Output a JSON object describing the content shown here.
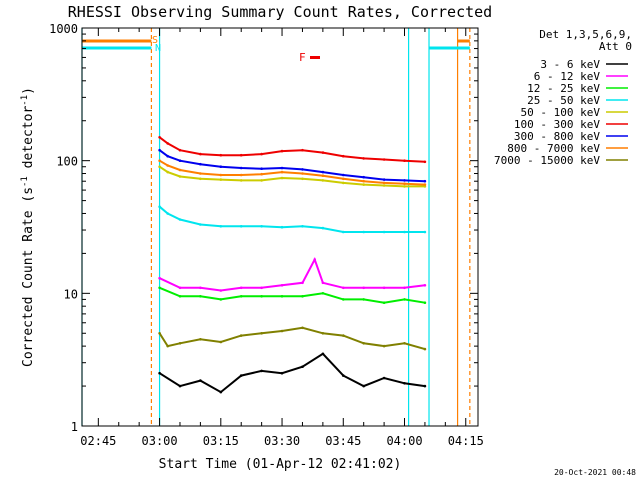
{
  "chart_data": {
    "type": "line",
    "title": "RHESSI Observing Summary Count Rates, Corrected",
    "xlabel": "Start Time (01-Apr-12 02:41:02)",
    "ylabel_main": "Corrected Count Rate (s",
    "ylabel_exp1": "-1",
    "ylabel_mid": " detector",
    "ylabel_exp2": "-1",
    "ylabel_end": ")",
    "yscale": "log",
    "xlim": [
      "02:41",
      "04:18"
    ],
    "ylim": [
      1,
      1000
    ],
    "x_ticks": [
      "02:45",
      "03:00",
      "03:15",
      "03:30",
      "03:45",
      "04:00",
      "04:15"
    ],
    "y_ticks": [
      "1",
      "10",
      "100",
      "1000"
    ],
    "footer": "20-Oct-2021 00:48",
    "legend_header": [
      "Det 1,3,5,6,9,",
      "Att 0"
    ],
    "markers": {
      "s": "S",
      "n": "N",
      "f": "F"
    },
    "vertical_lines": [
      {
        "time": "02:41",
        "color": "#00e5ee"
      },
      {
        "time": "02:58",
        "color": "#ff7f00",
        "dashed": true
      },
      {
        "time": "03:00",
        "color": "#00e5ee"
      },
      {
        "time": "04:01",
        "color": "#00e5ee"
      },
      {
        "time": "04:06",
        "color": "#00e5ee"
      },
      {
        "time": "04:13",
        "color": "#ff7f00"
      },
      {
        "time": "04:16",
        "color": "#ff7f00",
        "dashed": true
      }
    ],
    "series": [
      {
        "name": "3 - 6 keV",
        "color": "#000000",
        "time": [
          "03:00",
          "03:05",
          "03:10",
          "03:15",
          "03:20",
          "03:25",
          "03:30",
          "03:35",
          "03:40",
          "03:45",
          "03:50",
          "03:55",
          "04:00",
          "04:05"
        ],
        "values": [
          2.5,
          2.0,
          2.2,
          1.8,
          2.4,
          2.6,
          2.5,
          2.8,
          3.5,
          2.4,
          2.0,
          2.3,
          2.1,
          2.0
        ]
      },
      {
        "name": "6 - 12 keV",
        "color": "#ff00ff",
        "time": [
          "03:00",
          "03:05",
          "03:10",
          "03:15",
          "03:20",
          "03:25",
          "03:30",
          "03:35",
          "03:38",
          "03:40",
          "03:45",
          "03:50",
          "03:55",
          "04:00",
          "04:05"
        ],
        "values": [
          13,
          11,
          11,
          10.5,
          11,
          11,
          11.5,
          12,
          18,
          12,
          11,
          11,
          11,
          11,
          11.5
        ]
      },
      {
        "name": "12 - 25 keV",
        "color": "#00ee00",
        "time": [
          "03:00",
          "03:05",
          "03:10",
          "03:15",
          "03:20",
          "03:25",
          "03:30",
          "03:35",
          "03:40",
          "03:45",
          "03:50",
          "03:55",
          "04:00",
          "04:05"
        ],
        "values": [
          11,
          9.5,
          9.5,
          9,
          9.5,
          9.5,
          9.5,
          9.5,
          10,
          9,
          9,
          8.5,
          9,
          8.5
        ]
      },
      {
        "name": "25 - 50 keV",
        "color": "#00e5ee",
        "time": [
          "03:00",
          "03:02",
          "03:05",
          "03:10",
          "03:15",
          "03:20",
          "03:25",
          "03:30",
          "03:35",
          "03:40",
          "03:45",
          "03:50",
          "03:55",
          "04:00",
          "04:05"
        ],
        "values": [
          45,
          40,
          36,
          33,
          32,
          32,
          32,
          31.5,
          32,
          31,
          29,
          29,
          29,
          29,
          29
        ]
      },
      {
        "name": "50 - 100 keV",
        "color": "#cccc00",
        "time": [
          "03:00",
          "03:02",
          "03:05",
          "03:10",
          "03:15",
          "03:20",
          "03:25",
          "03:30",
          "03:35",
          "03:40",
          "03:45",
          "03:50",
          "03:55",
          "04:00",
          "04:05"
        ],
        "values": [
          90,
          82,
          76,
          73,
          72,
          71,
          71,
          74,
          73,
          71,
          68,
          66,
          65,
          64,
          64
        ]
      },
      {
        "name": "100 - 300 keV",
        "color": "#ee0000",
        "time": [
          "03:00",
          "03:02",
          "03:05",
          "03:10",
          "03:15",
          "03:20",
          "03:25",
          "03:30",
          "03:35",
          "03:40",
          "03:45",
          "03:50",
          "03:55",
          "04:00",
          "04:05"
        ],
        "values": [
          150,
          135,
          120,
          112,
          110,
          110,
          112,
          118,
          120,
          115,
          108,
          104,
          102,
          100,
          98
        ]
      },
      {
        "name": "300 - 800 keV",
        "color": "#0000ee",
        "time": [
          "03:00",
          "03:02",
          "03:05",
          "03:10",
          "03:15",
          "03:20",
          "03:25",
          "03:30",
          "03:35",
          "03:40",
          "03:45",
          "03:50",
          "03:55",
          "04:00",
          "04:05"
        ],
        "values": [
          120,
          108,
          100,
          94,
          90,
          88,
          87,
          88,
          86,
          82,
          78,
          75,
          72,
          71,
          70
        ]
      },
      {
        "name": "800 - 7000 keV",
        "color": "#ff7f00",
        "time": [
          "03:00",
          "03:02",
          "03:05",
          "03:10",
          "03:15",
          "03:20",
          "03:25",
          "03:30",
          "03:35",
          "03:40",
          "03:45",
          "03:50",
          "03:55",
          "04:00",
          "04:05"
        ],
        "values": [
          100,
          92,
          85,
          80,
          78,
          78,
          79,
          82,
          80,
          77,
          73,
          70,
          68,
          67,
          66
        ]
      },
      {
        "name": "7000 - 15000 keV",
        "color": "#808000",
        "time": [
          "03:00",
          "03:02",
          "03:05",
          "03:10",
          "03:15",
          "03:20",
          "03:25",
          "03:30",
          "03:35",
          "03:40",
          "03:45",
          "03:50",
          "03:55",
          "04:00",
          "04:05"
        ],
        "values": [
          5.0,
          4.0,
          4.2,
          4.5,
          4.3,
          4.8,
          5.0,
          5.2,
          5.5,
          5.0,
          4.8,
          4.2,
          4.0,
          4.2,
          3.8
        ]
      }
    ],
    "grid": false,
    "legend_position": "right"
  }
}
